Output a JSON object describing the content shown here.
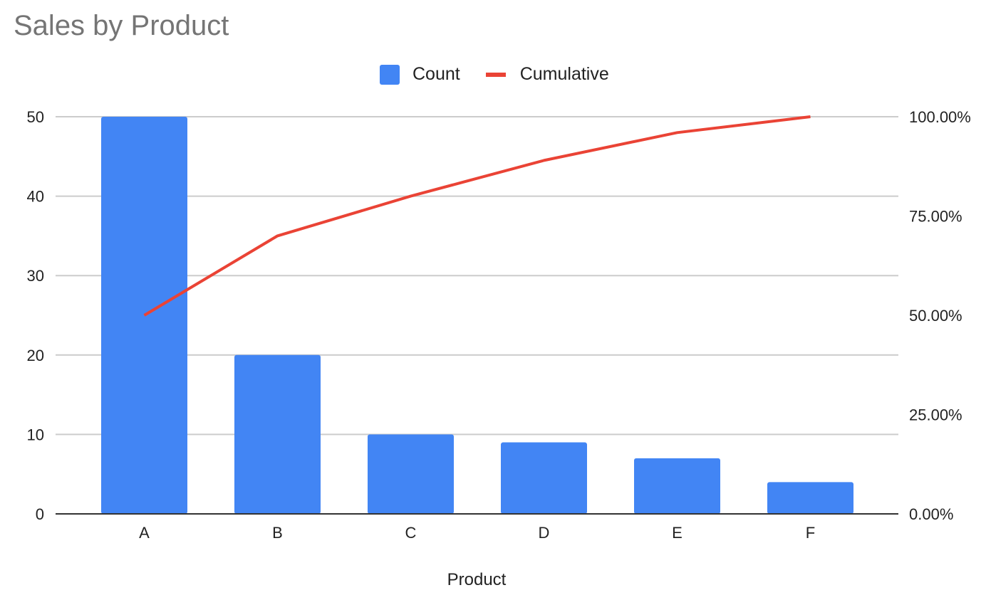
{
  "chart_data": {
    "type": "bar",
    "title": "Sales by Product",
    "xlabel": "Product",
    "ylabel": "",
    "y2label": "",
    "categories": [
      "A",
      "B",
      "C",
      "D",
      "E",
      "F"
    ],
    "series": [
      {
        "name": "Count",
        "type": "bar",
        "axis": "left",
        "color": "#4285f4",
        "values": [
          50,
          20,
          10,
          9,
          7,
          4
        ]
      },
      {
        "name": "Cumulative",
        "type": "line",
        "axis": "right",
        "color": "#ea4335",
        "values": [
          0.5,
          0.7,
          0.8,
          0.89,
          0.96,
          1.0
        ]
      }
    ],
    "ylim": [
      0,
      50
    ],
    "y2lim": [
      0,
      1
    ],
    "yticks": [
      "0",
      "10",
      "20",
      "30",
      "40",
      "50"
    ],
    "y2ticks": [
      "0.00%",
      "25.00%",
      "50.00%",
      "75.00%",
      "100.00%"
    ],
    "grid": true,
    "legend_position": "top"
  },
  "legend": {
    "count": "Count",
    "cumulative": "Cumulative"
  }
}
